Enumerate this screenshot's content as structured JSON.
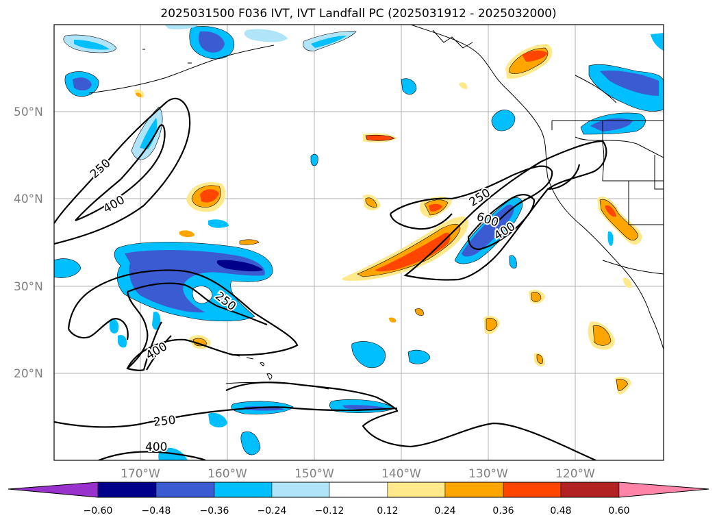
{
  "title": "2025031500 F036 IVT, IVT Landfall PC (2025031912 - 2025032000)",
  "colors": {
    "neg_060": "#9932cc",
    "neg_048": "#00008b",
    "neg_036": "#3a5bd1",
    "neg_024": "#00bfff",
    "neg_012": "#afe4f9",
    "pos_012": "#ffe98a",
    "pos_024": "#ffa500",
    "pos_036": "#ff4500",
    "pos_048": "#b22222",
    "pos_060": "#ff85a8",
    "grid": "#b0b0b0",
    "coast": "#000000",
    "label_gray": "#808080"
  },
  "lat_labels": [
    "50°N",
    "40°N",
    "30°N",
    "20°N"
  ],
  "lon_labels": [
    "170°W",
    "160°W",
    "150°W",
    "140°W",
    "130°W",
    "120°W"
  ],
  "colorbar": {
    "ticks": [
      "−0.60",
      "−0.48",
      "−0.36",
      "−0.24",
      "−0.12",
      "0.12",
      "0.24",
      "0.36",
      "0.48",
      "0.60"
    ]
  },
  "contour_labels": {
    "a": "250",
    "b": "400",
    "c": "250",
    "d": "400",
    "e": "250",
    "f": "400",
    "g": "250",
    "h": "600",
    "i": "400"
  }
}
